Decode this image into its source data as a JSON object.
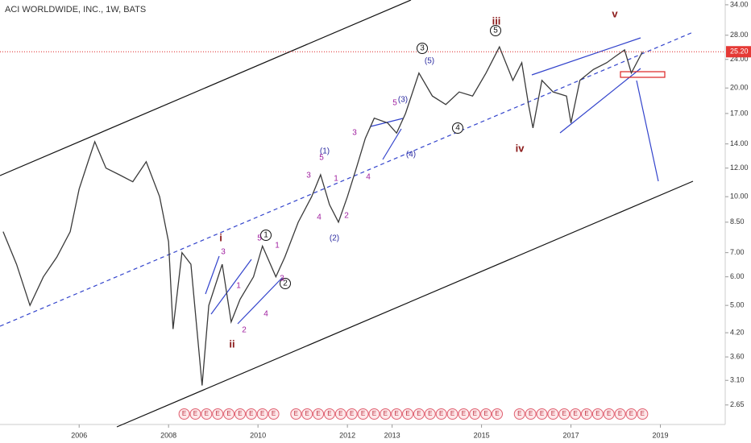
{
  "chart_data": {
    "type": "line",
    "title": "ACI WORLDWIDE, INC., 1W, BATS",
    "log_scale": true,
    "xlim": [
      2004.23,
      2020.45
    ],
    "ylim": [
      2.34,
      35.05
    ],
    "xticks": [
      2006,
      2008,
      2010,
      2012,
      2013,
      2015,
      2017,
      2019
    ],
    "yticks": [
      {
        "value": 2.65,
        "label": "2.65"
      },
      {
        "value": 3.1,
        "label": "3.10"
      },
      {
        "value": 3.6,
        "label": "3.60"
      },
      {
        "value": 4.2,
        "label": "4.20"
      },
      {
        "value": 5,
        "label": "5.00"
      },
      {
        "value": 6,
        "label": "6.00"
      },
      {
        "value": 7,
        "label": "7.00"
      },
      {
        "value": 8.5,
        "label": "8.50"
      },
      {
        "value": 10,
        "label": "10.00"
      },
      {
        "value": 12,
        "label": "12.00"
      },
      {
        "value": 14,
        "label": "14.00"
      },
      {
        "value": 17,
        "label": "17.00"
      },
      {
        "value": 20,
        "label": "20.00"
      },
      {
        "value": 24,
        "label": "24.00"
      },
      {
        "value": 28,
        "label": "28.00"
      },
      {
        "value": 34,
        "label": "34.00"
      }
    ],
    "series": [
      {
        "color": "#3a3a3a",
        "x": [
          2004.3,
          2004.6,
          2004.9,
          2005.2,
          2005.5,
          2005.8,
          2006.0,
          2006.2,
          2006.35,
          2006.6,
          2006.9,
          2007.2,
          2007.5,
          2007.8,
          2008.0,
          2008.1,
          2008.3,
          2008.5,
          2008.75,
          2008.9,
          2009.2,
          2009.4,
          2009.6,
          2009.9,
          2010.1,
          2010.4,
          2010.6,
          2010.9,
          2011.2,
          2011.4,
          2011.6,
          2011.8,
          2012.0,
          2012.2,
          2012.4,
          2012.6,
          2012.9,
          2013.1,
          2013.3,
          2013.6,
          2013.9,
          2014.2,
          2014.5,
          2014.8,
          2015.1,
          2015.4,
          2015.7,
          2015.9,
          2016.05,
          2016.15,
          2016.35,
          2016.6,
          2016.9,
          2017.0,
          2017.2,
          2017.5,
          2017.8,
          2018.0,
          2018.2,
          2018.35,
          2018.6
        ],
        "values": [
          8.0,
          6.5,
          5.0,
          6.0,
          6.8,
          8.0,
          10.5,
          12.5,
          14.2,
          12.0,
          11.5,
          11.0,
          12.5,
          10.0,
          7.5,
          4.3,
          7.0,
          6.5,
          3.0,
          5.0,
          6.5,
          4.5,
          5.2,
          6.0,
          7.3,
          6.0,
          6.8,
          8.5,
          10.0,
          11.5,
          9.5,
          8.5,
          10.0,
          12.0,
          14.5,
          16.5,
          16.0,
          15.0,
          17.0,
          22.0,
          19.0,
          18.0,
          19.5,
          19.0,
          22.0,
          26.0,
          21.0,
          23.5,
          18.0,
          15.5,
          21.0,
          19.5,
          19.0,
          16.0,
          21.0,
          22.5,
          23.5,
          24.5,
          25.5,
          22.0,
          25.2
        ]
      }
    ],
    "last_price": {
      "value": 25.2,
      "label": "25.20"
    },
    "annotations": [
      "iii",
      "5",
      "v",
      "3",
      "(5)",
      "5",
      "(3)",
      "3",
      "4",
      "iv",
      "(1)",
      "5",
      "(4)",
      "3",
      "1",
      "4",
      "4",
      "2",
      "(2)",
      "i",
      "1",
      "5",
      "1",
      "3",
      "1",
      "4",
      "2",
      "2",
      "3",
      "ii"
    ],
    "earnings": {
      "label": "E",
      "x": [
        2008.35,
        2008.6,
        2008.85,
        2009.1,
        2009.35,
        2009.6,
        2009.85,
        2010.1,
        2010.35,
        2010.85,
        2011.1,
        2011.35,
        2011.6,
        2011.85,
        2012.1,
        2012.35,
        2012.6,
        2012.85,
        2013.1,
        2013.35,
        2013.6,
        2013.85,
        2014.1,
        2014.35,
        2014.6,
        2014.85,
        2015.1,
        2015.35,
        2015.85,
        2016.1,
        2016.35,
        2016.6,
        2016.85,
        2017.1,
        2017.35,
        2017.6,
        2017.85,
        2018.1,
        2018.35,
        2018.6
      ]
    }
  }
}
